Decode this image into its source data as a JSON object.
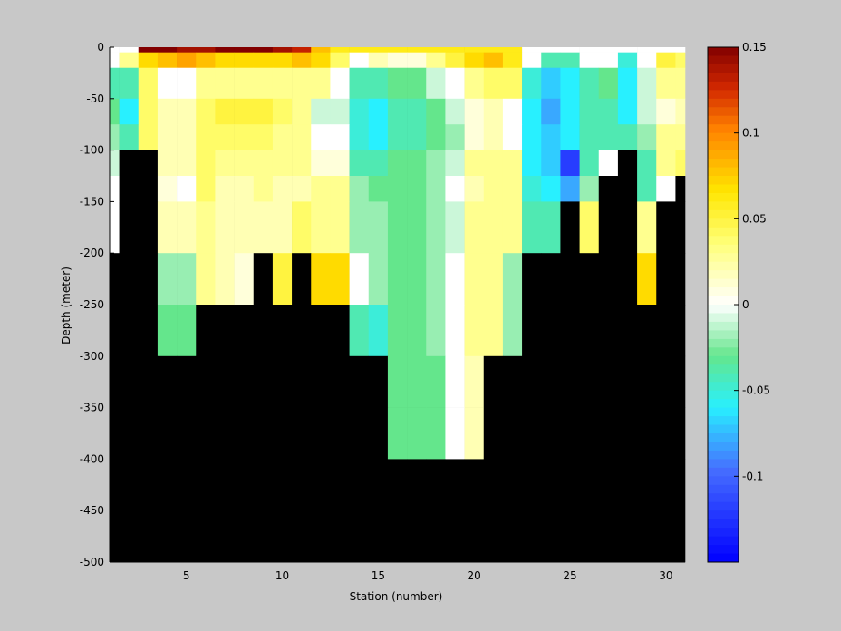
{
  "chart_data": {
    "type": "heatmap",
    "title": "",
    "xlabel": "Station (number)",
    "ylabel": "Depth (meter)",
    "xlim": [
      1,
      31
    ],
    "ylim": [
      -500,
      0
    ],
    "xticks": [
      5,
      10,
      15,
      20,
      25,
      30
    ],
    "yticks": [
      0,
      -50,
      -100,
      -150,
      -200,
      -250,
      -300,
      -350,
      -400,
      -450,
      -500
    ],
    "colorbar": {
      "range": [
        -0.15,
        0.15
      ],
      "ticks": [
        0.15,
        0.1,
        0.05,
        0,
        -0.05,
        -0.1
      ],
      "colormap": "jet-white-center"
    },
    "mask_color": "#000000",
    "stations": [
      1,
      2,
      3,
      4,
      5,
      6,
      7,
      8,
      9,
      10,
      11,
      12,
      13,
      14,
      15,
      16,
      17,
      18,
      19,
      20,
      21,
      22,
      23,
      24,
      25,
      26,
      27,
      28,
      29,
      30,
      31
    ],
    "depth_edges": [
      0,
      -5,
      -20,
      -50,
      -75,
      -100,
      -125,
      -150,
      -200,
      -250,
      -300,
      -350,
      -400,
      -500
    ],
    "values": [
      [
        0.0,
        0.0,
        0.15,
        0.15,
        0.14,
        0.14,
        0.15,
        0.15,
        0.15,
        0.14,
        0.13,
        0.08,
        0.06,
        0.06,
        0.06,
        0.06,
        0.06,
        0.06,
        0.06,
        0.06,
        0.06,
        0.06,
        0.0,
        0.0,
        0.0,
        0.0,
        0.0,
        0.0,
        0.0,
        0.0,
        0.0
      ],
      [
        0.0,
        0.03,
        0.07,
        0.08,
        0.09,
        0.08,
        0.07,
        0.07,
        0.07,
        0.07,
        0.08,
        0.07,
        0.04,
        0.0,
        0.02,
        0.01,
        0.01,
        0.03,
        0.05,
        0.07,
        0.08,
        0.06,
        0.0,
        -0.04,
        -0.04,
        0.0,
        0.0,
        -0.05,
        0.0,
        0.05,
        0.04
      ],
      [
        -0.04,
        -0.04,
        0.04,
        0.0,
        0.0,
        0.03,
        0.03,
        0.03,
        0.03,
        0.03,
        0.03,
        0.03,
        0.0,
        -0.04,
        -0.04,
        -0.03,
        -0.03,
        -0.01,
        0.0,
        0.03,
        0.04,
        0.04,
        -0.05,
        -0.07,
        -0.06,
        -0.04,
        -0.03,
        -0.06,
        -0.01,
        0.03,
        0.03
      ],
      [
        -0.03,
        -0.06,
        0.04,
        0.02,
        0.02,
        0.04,
        0.05,
        0.05,
        0.05,
        0.04,
        0.03,
        -0.01,
        -0.01,
        -0.05,
        -0.06,
        -0.04,
        -0.04,
        -0.03,
        -0.01,
        0.01,
        0.02,
        0.0,
        -0.06,
        -0.08,
        -0.06,
        -0.04,
        -0.04,
        -0.06,
        -0.01,
        0.01,
        0.02
      ],
      [
        -0.02,
        -0.04,
        0.04,
        0.02,
        0.02,
        0.04,
        0.04,
        0.04,
        0.04,
        0.03,
        0.03,
        0.0,
        0.0,
        -0.05,
        -0.06,
        -0.04,
        -0.04,
        -0.03,
        -0.02,
        0.01,
        0.02,
        0.0,
        -0.06,
        -0.07,
        -0.06,
        -0.04,
        -0.04,
        -0.04,
        -0.02,
        0.03,
        0.03
      ],
      [
        -0.01,
        null,
        null,
        0.02,
        0.02,
        0.04,
        0.03,
        0.03,
        0.03,
        0.03,
        0.03,
        0.01,
        0.01,
        -0.04,
        -0.04,
        -0.03,
        -0.03,
        -0.02,
        -0.01,
        0.03,
        0.03,
        0.03,
        -0.06,
        -0.07,
        -0.12,
        -0.04,
        0.0,
        null,
        -0.04,
        0.03,
        0.04
      ],
      [
        0.0,
        null,
        null,
        0.01,
        0.0,
        0.04,
        0.02,
        0.02,
        0.03,
        0.02,
        0.02,
        0.03,
        0.03,
        -0.02,
        -0.03,
        -0.03,
        -0.03,
        -0.02,
        0.0,
        0.02,
        0.03,
        0.03,
        -0.05,
        -0.06,
        -0.08,
        -0.02,
        null,
        null,
        -0.04,
        0.0,
        null
      ],
      [
        0.0,
        null,
        null,
        0.02,
        0.02,
        0.03,
        0.02,
        0.02,
        0.02,
        0.02,
        0.04,
        0.03,
        0.03,
        -0.02,
        -0.02,
        -0.03,
        -0.03,
        -0.02,
        -0.01,
        0.03,
        0.03,
        0.03,
        -0.04,
        -0.04,
        null,
        0.04,
        null,
        null,
        0.03,
        null,
        null
      ],
      [
        null,
        null,
        null,
        -0.02,
        -0.02,
        0.03,
        0.02,
        0.01,
        null,
        0.05,
        null,
        0.07,
        0.07,
        0.0,
        -0.02,
        -0.03,
        -0.03,
        -0.02,
        0.0,
        0.03,
        0.03,
        -0.02,
        null,
        null,
        null,
        null,
        null,
        null,
        0.07,
        null,
        null
      ],
      [
        null,
        null,
        null,
        -0.03,
        -0.03,
        null,
        null,
        null,
        null,
        null,
        null,
        null,
        null,
        -0.04,
        -0.05,
        -0.03,
        -0.03,
        -0.02,
        0.0,
        0.03,
        0.03,
        -0.02,
        null,
        null,
        null,
        null,
        null,
        null,
        null,
        null,
        null
      ],
      [
        null,
        null,
        null,
        null,
        null,
        null,
        null,
        null,
        null,
        null,
        null,
        null,
        null,
        null,
        null,
        -0.03,
        -0.03,
        -0.03,
        0.0,
        0.02,
        null,
        null,
        null,
        null,
        null,
        null,
        null,
        null,
        null,
        null,
        null
      ],
      [
        null,
        null,
        null,
        null,
        null,
        null,
        null,
        null,
        null,
        null,
        null,
        null,
        null,
        null,
        null,
        -0.03,
        -0.03,
        -0.03,
        0.0,
        0.02,
        null,
        null,
        null,
        null,
        null,
        null,
        null,
        null,
        null,
        null,
        null
      ],
      [
        null,
        null,
        null,
        null,
        null,
        null,
        null,
        null,
        null,
        null,
        null,
        null,
        null,
        null,
        null,
        null,
        null,
        null,
        null,
        null,
        null,
        null,
        null,
        null,
        null,
        null,
        null,
        null,
        null,
        null,
        null
      ]
    ]
  }
}
